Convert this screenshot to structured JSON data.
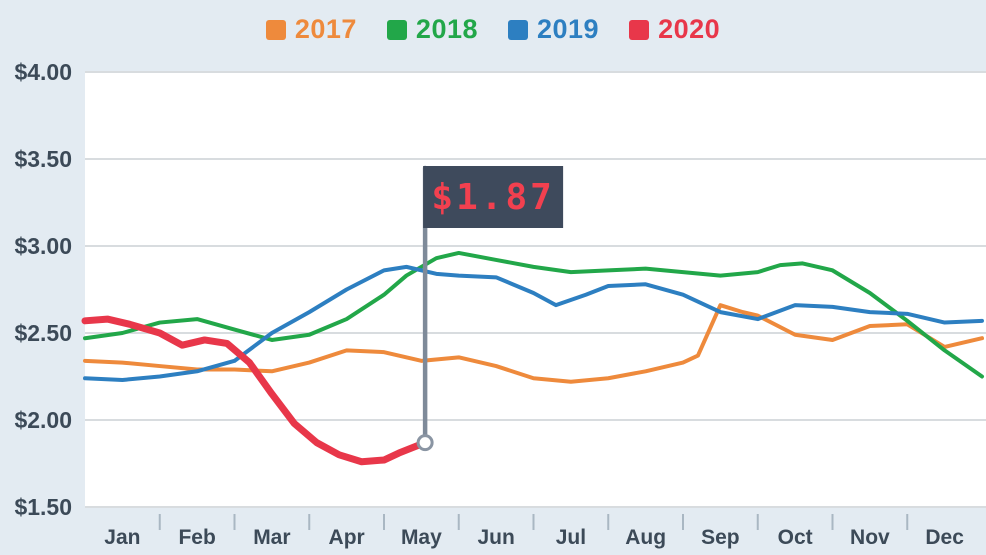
{
  "page": {
    "background_color": "#e3ebf2",
    "plot_background": "#ffffff",
    "grid_color": "#d8dcdf",
    "tick_color": "#a9b7c3",
    "text_color": "#3c4a58"
  },
  "chart_data": {
    "type": "line",
    "title": "",
    "xlabel": "",
    "ylabel": "",
    "x_categories": [
      "Jan",
      "Feb",
      "Mar",
      "Apr",
      "May",
      "Jun",
      "Jul",
      "Aug",
      "Sep",
      "Oct",
      "Nov",
      "Dec"
    ],
    "y_tick_labels": [
      "$4.00",
      "$3.50",
      "$3.00",
      "$2.50",
      "$2.00",
      "$1.50"
    ],
    "y_tick_values": [
      4.0,
      3.5,
      3.0,
      2.5,
      2.0,
      1.5
    ],
    "ylim": [
      1.5,
      4.0
    ],
    "xlim_months": [
      0,
      12
    ],
    "grid": true,
    "legend_position": "top-center",
    "series": [
      {
        "name": "2017",
        "color": "#ee8a3c",
        "line_width": 4,
        "x": [
          0,
          0.5,
          1,
          1.5,
          2,
          2.5,
          3,
          3.5,
          4,
          4.5,
          5,
          5.5,
          6,
          6.5,
          7,
          7.5,
          8,
          8.2,
          8.5,
          8.8,
          9,
          9.5,
          10,
          10.5,
          11,
          11.5,
          12
        ],
        "values": [
          2.34,
          2.33,
          2.31,
          2.29,
          2.29,
          2.28,
          2.33,
          2.4,
          2.39,
          2.34,
          2.36,
          2.31,
          2.24,
          2.22,
          2.24,
          2.28,
          2.33,
          2.37,
          2.66,
          2.62,
          2.6,
          2.49,
          2.46,
          2.54,
          2.55,
          2.42,
          2.47
        ]
      },
      {
        "name": "2018",
        "color": "#22a749",
        "line_width": 4,
        "x": [
          0,
          0.5,
          1,
          1.5,
          2,
          2.5,
          3,
          3.5,
          4,
          4.3,
          4.7,
          5,
          5.5,
          6,
          6.5,
          7,
          7.5,
          8,
          8.5,
          9,
          9.3,
          9.6,
          10,
          10.5,
          11,
          11.5,
          12
        ],
        "values": [
          2.47,
          2.5,
          2.56,
          2.58,
          2.52,
          2.46,
          2.49,
          2.58,
          2.72,
          2.83,
          2.93,
          2.96,
          2.92,
          2.88,
          2.85,
          2.86,
          2.87,
          2.85,
          2.83,
          2.85,
          2.89,
          2.9,
          2.86,
          2.73,
          2.57,
          2.4,
          2.25
        ]
      },
      {
        "name": "2019",
        "color": "#2d7fc1",
        "line_width": 4,
        "x": [
          0,
          0.5,
          1,
          1.5,
          2,
          2.5,
          3,
          3.5,
          4,
          4.3,
          4.7,
          5,
          5.5,
          6,
          6.3,
          6.7,
          7,
          7.5,
          8,
          8.5,
          9,
          9.5,
          10,
          10.5,
          11,
          11.5,
          12
        ],
        "values": [
          2.24,
          2.23,
          2.25,
          2.28,
          2.34,
          2.5,
          2.62,
          2.75,
          2.86,
          2.88,
          2.84,
          2.83,
          2.82,
          2.73,
          2.66,
          2.72,
          2.77,
          2.78,
          2.72,
          2.62,
          2.58,
          2.66,
          2.65,
          2.62,
          2.61,
          2.56,
          2.57
        ]
      },
      {
        "name": "2020",
        "color": "#e8374a",
        "line_width": 7,
        "x": [
          0,
          0.3,
          0.6,
          1,
          1.3,
          1.6,
          1.9,
          2.2,
          2.5,
          2.8,
          3.1,
          3.4,
          3.7,
          4,
          4.2,
          4.55
        ],
        "values": [
          2.57,
          2.58,
          2.55,
          2.5,
          2.43,
          2.46,
          2.44,
          2.33,
          2.15,
          1.98,
          1.87,
          1.8,
          1.76,
          1.77,
          1.81,
          1.87
        ]
      }
    ],
    "annotation": {
      "label": "$1.87",
      "x": 4.55,
      "y": 1.87,
      "series": "2020",
      "flag_color": "#3e4a5c",
      "text_color": "#f2404f",
      "pole_color": "#7e8a99",
      "marker_fill": "#ffffff",
      "marker_stroke": "#8a95a3"
    }
  }
}
